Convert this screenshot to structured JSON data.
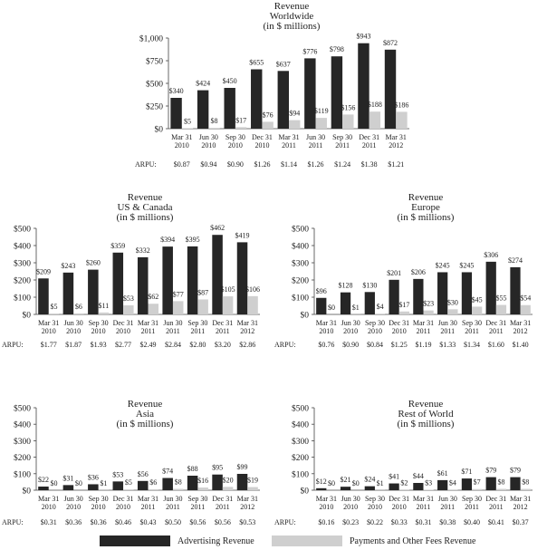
{
  "legend": {
    "advertising": {
      "label": "Advertising Revenue",
      "color": "#262626"
    },
    "payments": {
      "label": "Payments and Other Fees Revenue",
      "color": "#cfcfcf"
    }
  },
  "arpu_label": "ARPU:",
  "chart_data": [
    {
      "type": "bar",
      "title": [
        "Revenue",
        "Worldwide",
        "(in $ millions)"
      ],
      "categories": [
        [
          "Mar 31",
          "2010"
        ],
        [
          "Jun 30",
          "2010"
        ],
        [
          "Sep 30",
          "2010"
        ],
        [
          "Dec 31",
          "2010"
        ],
        [
          "Mar 31",
          "2011"
        ],
        [
          "Jun 30",
          "2011"
        ],
        [
          "Sep 30",
          "2011"
        ],
        [
          "Dec 31",
          "2011"
        ],
        [
          "Mar 31",
          "2012"
        ]
      ],
      "ylim": [
        0,
        1000
      ],
      "yticks": [
        0,
        250,
        500,
        750,
        1000
      ],
      "ytick_labels": [
        "$0",
        "$250",
        "$500",
        "$750",
        "$1,000"
      ],
      "series": [
        {
          "name": "Advertising Revenue",
          "values": [
            340,
            424,
            450,
            655,
            637,
            776,
            798,
            943,
            872
          ],
          "labels": [
            "$340",
            "$424",
            "$450",
            "$655",
            "$637",
            "$776",
            "$798",
            "$943",
            "$872"
          ]
        },
        {
          "name": "Payments and Other Fees Revenue",
          "values": [
            5,
            8,
            17,
            76,
            94,
            119,
            156,
            188,
            186
          ],
          "labels": [
            "$5",
            "$8",
            "$17",
            "$76",
            "$94",
            "$119",
            "$156",
            "$188",
            "$186"
          ]
        }
      ],
      "arpu": [
        "$0.87",
        "$0.94",
        "$0.90",
        "$1.26",
        "$1.14",
        "$1.26",
        "$1.24",
        "$1.38",
        "$1.21"
      ]
    },
    {
      "type": "bar",
      "title": [
        "Revenue",
        "US & Canada",
        "(in $ millions)"
      ],
      "categories": [
        [
          "Mar 31",
          "2010"
        ],
        [
          "Jun 30",
          "2010"
        ],
        [
          "Sep 30",
          "2010"
        ],
        [
          "Dec 31",
          "2010"
        ],
        [
          "Mar 31",
          "2011"
        ],
        [
          "Jun 30",
          "2011"
        ],
        [
          "Sep 30",
          "2011"
        ],
        [
          "Dec 31",
          "2011"
        ],
        [
          "Mar 31",
          "2012"
        ]
      ],
      "ylim": [
        0,
        500
      ],
      "yticks": [
        0,
        100,
        200,
        300,
        400,
        500
      ],
      "ytick_labels": [
        "$0",
        "$100",
        "$200",
        "$300",
        "$400",
        "$500"
      ],
      "series": [
        {
          "name": "Advertising Revenue",
          "values": [
            209,
            243,
            260,
            359,
            332,
            394,
            395,
            462,
            419
          ],
          "labels": [
            "$209",
            "$243",
            "$260",
            "$359",
            "$332",
            "$394",
            "$395",
            "$462",
            "$419"
          ]
        },
        {
          "name": "Payments and Other Fees Revenue",
          "values": [
            5,
            6,
            11,
            53,
            62,
            77,
            87,
            105,
            106
          ],
          "labels": [
            "$5",
            "$6",
            "$11",
            "$53",
            "$62",
            "$77",
            "$87",
            "$105",
            "$106"
          ]
        }
      ],
      "arpu": [
        "$1.77",
        "$1.87",
        "$1.93",
        "$2.77",
        "$2.49",
        "$2.84",
        "$2.80",
        "$3.20",
        "$2.86"
      ]
    },
    {
      "type": "bar",
      "title": [
        "Revenue",
        "Europe",
        "(in $ millions)"
      ],
      "categories": [
        [
          "Mar 31",
          "2010"
        ],
        [
          "Jun 30",
          "2010"
        ],
        [
          "Sep 30",
          "2010"
        ],
        [
          "Dec 31",
          "2010"
        ],
        [
          "Mar 31",
          "2011"
        ],
        [
          "Jun 30",
          "2011"
        ],
        [
          "Sep 30",
          "2011"
        ],
        [
          "Dec 31",
          "2011"
        ],
        [
          "Mar 31",
          "2012"
        ]
      ],
      "ylim": [
        0,
        500
      ],
      "yticks": [
        0,
        100,
        200,
        300,
        400,
        500
      ],
      "ytick_labels": [
        "$0",
        "$100",
        "$200",
        "$300",
        "$400",
        "$500"
      ],
      "series": [
        {
          "name": "Advertising Revenue",
          "values": [
            96,
            128,
            130,
            201,
            206,
            245,
            245,
            306,
            274
          ],
          "labels": [
            "$96",
            "$128",
            "$130",
            "$201",
            "$206",
            "$245",
            "$245",
            "$306",
            "$274"
          ]
        },
        {
          "name": "Payments and Other Fees Revenue",
          "values": [
            0,
            1,
            4,
            17,
            23,
            30,
            45,
            55,
            54
          ],
          "labels": [
            "$0",
            "$1",
            "$4",
            "$17",
            "$23",
            "$30",
            "$45",
            "$55",
            "$54"
          ]
        }
      ],
      "arpu": [
        "$0.76",
        "$0.90",
        "$0.84",
        "$1.25",
        "$1.19",
        "$1.33",
        "$1.34",
        "$1.60",
        "$1.40"
      ]
    },
    {
      "type": "bar",
      "title": [
        "Revenue",
        "Asia",
        "(in $ millions)"
      ],
      "categories": [
        [
          "Mar 31",
          "2010"
        ],
        [
          "Jun 30",
          "2010"
        ],
        [
          "Sep 30",
          "2010"
        ],
        [
          "Dec 31",
          "2010"
        ],
        [
          "Mar 31",
          "2011"
        ],
        [
          "Jun 30",
          "2011"
        ],
        [
          "Sep 30",
          "2011"
        ],
        [
          "Dec 31",
          "2011"
        ],
        [
          "Mar 31",
          "2012"
        ]
      ],
      "ylim": [
        0,
        500
      ],
      "yticks": [
        0,
        100,
        200,
        300,
        400,
        500
      ],
      "ytick_labels": [
        "$0",
        "$100",
        "$200",
        "$300",
        "$400",
        "$500"
      ],
      "series": [
        {
          "name": "Advertising Revenue",
          "values": [
            22,
            31,
            36,
            53,
            56,
            74,
            88,
            95,
            99
          ],
          "labels": [
            "$22",
            "$31",
            "$36",
            "$53",
            "$56",
            "$74",
            "$88",
            "$95",
            "$99"
          ]
        },
        {
          "name": "Payments and Other Fees Revenue",
          "values": [
            0,
            0,
            1,
            5,
            6,
            8,
            16,
            20,
            19
          ],
          "labels": [
            "$0",
            "$0",
            "$1",
            "$5",
            "$6",
            "$8",
            "$16",
            "$20",
            "$19"
          ]
        }
      ],
      "arpu": [
        "$0.31",
        "$0.36",
        "$0.36",
        "$0.46",
        "$0.43",
        "$0.50",
        "$0.56",
        "$0.56",
        "$0.53"
      ]
    },
    {
      "type": "bar",
      "title": [
        "Revenue",
        "Rest of World",
        "(in $ millions)"
      ],
      "categories": [
        [
          "Mar 31",
          "2010"
        ],
        [
          "Jun 30",
          "2010"
        ],
        [
          "Sep 30",
          "2010"
        ],
        [
          "Dec 31",
          "2010"
        ],
        [
          "Mar 31",
          "2011"
        ],
        [
          "Jun 30",
          "2011"
        ],
        [
          "Sep 30",
          "2011"
        ],
        [
          "Dec 31",
          "2011"
        ],
        [
          "Mar 31",
          "2012"
        ]
      ],
      "ylim": [
        0,
        500
      ],
      "yticks": [
        0,
        100,
        200,
        300,
        400,
        500
      ],
      "ytick_labels": [
        "$0",
        "$100",
        "$200",
        "$300",
        "$400",
        "$500"
      ],
      "series": [
        {
          "name": "Advertising Revenue",
          "values": [
            12,
            21,
            24,
            41,
            44,
            61,
            71,
            79,
            79
          ],
          "labels": [
            "$12",
            "$21",
            "$24",
            "$41",
            "$44",
            "$61",
            "$71",
            "$79",
            "$79"
          ]
        },
        {
          "name": "Payments and Other Fees Revenue",
          "values": [
            0,
            0,
            1,
            2,
            3,
            4,
            7,
            8,
            8
          ],
          "labels": [
            "$0",
            "$0",
            "$1",
            "$2",
            "$3",
            "$4",
            "$7",
            "$8",
            "$8"
          ]
        }
      ],
      "arpu": [
        "$0.16",
        "$0.23",
        "$0.22",
        "$0.33",
        "$0.31",
        "$0.38",
        "$0.40",
        "$0.41",
        "$0.37"
      ]
    }
  ]
}
